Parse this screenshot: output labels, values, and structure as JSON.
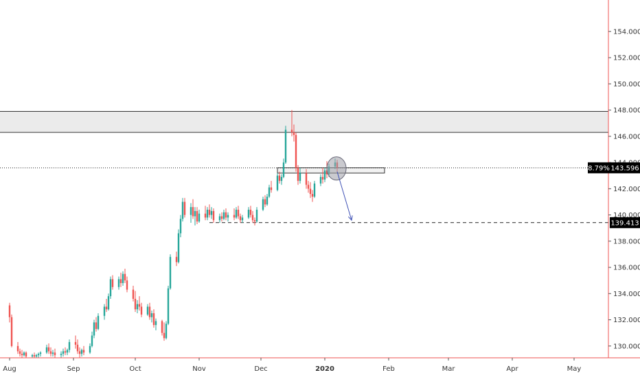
{
  "chart_data": {
    "type": "candlestick",
    "title": "",
    "xlabel": "",
    "ylabel": "",
    "ylim": [
      129.1,
      156.4
    ],
    "y_ticks": [
      "130.000",
      "132.000",
      "134.000",
      "136.000",
      "138.000",
      "140.000",
      "142.000",
      "144.000",
      "146.000",
      "148.000",
      "150.000",
      "152.000",
      "154.000"
    ],
    "x_ticks": [
      {
        "label": "Aug",
        "date": "2019-08-01"
      },
      {
        "label": "Sep",
        "date": "2019-09-01"
      },
      {
        "label": "Oct",
        "date": "2019-10-01"
      },
      {
        "label": "Nov",
        "date": "2019-11-01"
      },
      {
        "label": "Dec",
        "date": "2019-12-01"
      },
      {
        "label": "2020",
        "date": "2020-01-01",
        "bold": true
      },
      {
        "label": "Feb",
        "date": "2020-02-01"
      },
      {
        "label": "Mar",
        "date": "2020-03-01"
      },
      {
        "label": "Apr",
        "date": "2020-04-01"
      },
      {
        "label": "May",
        "date": "2020-05-01"
      }
    ],
    "colors": {
      "up": "#26a69a",
      "down": "#ef5350",
      "axis_line": "#ef5350",
      "zone_fill": "#ebebeb",
      "zone_border": "#333333",
      "arrow": "#3f51b5",
      "circle": "#9e9ea8",
      "label_bg": "#000000"
    },
    "grid": false,
    "ohlc_key": [
      "date",
      "open",
      "high",
      "low",
      "close"
    ],
    "ohlc": [
      [
        "2019-08-01",
        133.1,
        133.3,
        131.8,
        132.2
      ],
      [
        "2019-08-02",
        132.2,
        132.4,
        129.9,
        130.0
      ],
      [
        "2019-08-05",
        130.0,
        130.3,
        129.4,
        129.6
      ],
      [
        "2019-08-06",
        129.6,
        129.8,
        129.2,
        129.4
      ],
      [
        "2019-08-07",
        129.4,
        129.7,
        129.1,
        129.3
      ],
      [
        "2019-08-08",
        129.3,
        129.6,
        129.2,
        129.5
      ],
      [
        "2019-08-09",
        129.5,
        129.6,
        129.1,
        129.2
      ],
      [
        "2019-08-12",
        129.2,
        129.4,
        129.1,
        129.3
      ],
      [
        "2019-08-13",
        129.3,
        129.5,
        129.1,
        129.2
      ],
      [
        "2019-08-14",
        129.2,
        129.4,
        129.1,
        129.3
      ],
      [
        "2019-08-15",
        129.3,
        129.5,
        129.1,
        129.4
      ],
      [
        "2019-08-16",
        129.4,
        129.6,
        129.2,
        129.5
      ],
      [
        "2019-08-19",
        129.5,
        130.1,
        129.4,
        129.9
      ],
      [
        "2019-08-20",
        129.9,
        130.2,
        129.4,
        129.6
      ],
      [
        "2019-08-21",
        129.6,
        129.9,
        129.2,
        129.4
      ],
      [
        "2019-08-22",
        129.4,
        129.7,
        129.2,
        129.5
      ],
      [
        "2019-08-23",
        129.5,
        129.8,
        129.1,
        129.3
      ],
      [
        "2019-08-26",
        129.3,
        129.6,
        129.1,
        129.4
      ],
      [
        "2019-08-27",
        129.4,
        129.8,
        129.2,
        129.6
      ],
      [
        "2019-08-28",
        129.6,
        129.9,
        129.3,
        129.5
      ],
      [
        "2019-08-29",
        129.5,
        129.8,
        129.3,
        129.7
      ],
      [
        "2019-08-30",
        129.7,
        130.5,
        129.5,
        130.3
      ],
      [
        "2019-09-02",
        130.3,
        130.8,
        129.8,
        130.1
      ],
      [
        "2019-09-03",
        130.1,
        130.5,
        129.4,
        129.6
      ],
      [
        "2019-09-04",
        129.6,
        129.9,
        129.1,
        129.4
      ],
      [
        "2019-09-05",
        129.4,
        129.8,
        129.2,
        129.7
      ],
      [
        "2019-09-06",
        129.7,
        130.0,
        129.3,
        129.5
      ],
      [
        "2019-09-09",
        129.5,
        130.2,
        129.4,
        130.0
      ],
      [
        "2019-09-10",
        130.0,
        131.1,
        129.9,
        130.8
      ],
      [
        "2019-09-11",
        130.8,
        132.0,
        130.6,
        131.8
      ],
      [
        "2019-09-12",
        131.8,
        132.2,
        131.1,
        131.3
      ],
      [
        "2019-09-13",
        131.3,
        132.5,
        131.2,
        132.3
      ],
      [
        "2019-09-16",
        132.3,
        133.2,
        132.0,
        133.0
      ],
      [
        "2019-09-17",
        133.0,
        133.6,
        132.6,
        132.8
      ],
      [
        "2019-09-18",
        132.8,
        134.0,
        132.7,
        133.8
      ],
      [
        "2019-09-19",
        133.8,
        135.3,
        133.6,
        135.1
      ],
      [
        "2019-09-20",
        135.1,
        135.4,
        134.3,
        134.5
      ],
      [
        "2019-09-23",
        134.5,
        135.3,
        134.3,
        135.1
      ],
      [
        "2019-09-24",
        135.1,
        135.6,
        134.5,
        134.8
      ],
      [
        "2019-09-25",
        134.8,
        135.7,
        134.6,
        135.5
      ],
      [
        "2019-09-26",
        135.5,
        135.9,
        134.8,
        135.0
      ],
      [
        "2019-09-27",
        135.0,
        135.3,
        134.1,
        134.3
      ],
      [
        "2019-09-30",
        134.3,
        134.6,
        133.4,
        133.6
      ],
      [
        "2019-10-01",
        133.6,
        134.2,
        132.6,
        132.8
      ],
      [
        "2019-10-02",
        132.8,
        133.5,
        132.5,
        133.2
      ],
      [
        "2019-10-03",
        133.2,
        133.8,
        132.7,
        133.0
      ],
      [
        "2019-10-04",
        133.0,
        133.3,
        132.2,
        132.4
      ],
      [
        "2019-10-07",
        132.4,
        133.2,
        132.3,
        133.0
      ],
      [
        "2019-10-08",
        133.0,
        133.3,
        132.0,
        132.2
      ],
      [
        "2019-10-09",
        132.2,
        132.7,
        131.8,
        132.5
      ],
      [
        "2019-10-10",
        132.5,
        132.8,
        131.4,
        131.6
      ],
      [
        "2019-10-11",
        131.6,
        132.1,
        131.2,
        131.9
      ],
      [
        "2019-10-14",
        131.9,
        132.0,
        130.8,
        131.0
      ],
      [
        "2019-10-15",
        131.0,
        131.8,
        130.4,
        130.6
      ],
      [
        "2019-10-16",
        130.6,
        131.9,
        130.5,
        131.7
      ],
      [
        "2019-10-17",
        131.7,
        134.6,
        131.6,
        134.4
      ],
      [
        "2019-10-18",
        134.4,
        137.0,
        134.3,
        136.8
      ],
      [
        "2019-10-21",
        136.8,
        137.2,
        136.1,
        136.4
      ],
      [
        "2019-10-22",
        136.4,
        138.9,
        136.3,
        138.6
      ],
      [
        "2019-10-23",
        138.6,
        140.0,
        138.3,
        139.7
      ],
      [
        "2019-10-24",
        139.7,
        141.3,
        139.5,
        141.0
      ],
      [
        "2019-10-25",
        141.0,
        141.3,
        139.8,
        140.0
      ],
      [
        "2019-10-28",
        140.0,
        140.9,
        139.4,
        140.6
      ],
      [
        "2019-10-29",
        140.6,
        141.2,
        139.7,
        139.9
      ],
      [
        "2019-10-30",
        139.9,
        140.6,
        139.2,
        140.3
      ],
      [
        "2019-10-31",
        140.3,
        140.6,
        139.3,
        139.5
      ],
      [
        "2019-11-01",
        139.5,
        140.4,
        139.4,
        140.1
      ],
      [
        "2019-11-04",
        140.1,
        140.7,
        139.6,
        139.8
      ],
      [
        "2019-11-05",
        139.8,
        140.6,
        139.6,
        140.4
      ],
      [
        "2019-11-06",
        140.4,
        140.8,
        139.8,
        140.0
      ],
      [
        "2019-11-07",
        140.0,
        140.6,
        139.7,
        140.3
      ],
      [
        "2019-11-08",
        140.3,
        140.5,
        139.4,
        139.6
      ],
      [
        "2019-11-11",
        139.6,
        140.1,
        139.4,
        139.9
      ],
      [
        "2019-11-12",
        139.9,
        140.2,
        139.5,
        139.7
      ],
      [
        "2019-11-13",
        139.7,
        140.4,
        139.6,
        140.2
      ],
      [
        "2019-11-14",
        140.2,
        140.5,
        139.6,
        139.8
      ],
      [
        "2019-11-15",
        139.8,
        140.2,
        139.5,
        140.0
      ],
      [
        "2019-11-18",
        140.0,
        140.5,
        139.6,
        139.8
      ],
      [
        "2019-11-19",
        139.8,
        140.6,
        139.7,
        140.4
      ],
      [
        "2019-11-20",
        140.4,
        140.7,
        139.7,
        139.9
      ],
      [
        "2019-11-21",
        139.9,
        140.1,
        139.4,
        139.6
      ],
      [
        "2019-11-22",
        139.6,
        140.0,
        139.4,
        139.8
      ],
      [
        "2019-11-25",
        139.8,
        140.6,
        139.7,
        140.4
      ],
      [
        "2019-11-26",
        140.4,
        140.7,
        139.8,
        140.0
      ],
      [
        "2019-11-27",
        140.0,
        140.3,
        139.4,
        139.6
      ],
      [
        "2019-11-28",
        139.6,
        139.8,
        139.2,
        139.5
      ],
      [
        "2019-11-29",
        139.5,
        140.6,
        139.4,
        140.4
      ],
      [
        "2019-12-02",
        140.4,
        141.4,
        140.3,
        141.2
      ],
      [
        "2019-12-03",
        141.2,
        141.5,
        140.6,
        140.8
      ],
      [
        "2019-12-04",
        140.8,
        141.6,
        140.7,
        141.4
      ],
      [
        "2019-12-05",
        141.4,
        142.3,
        141.3,
        142.1
      ],
      [
        "2019-12-06",
        142.1,
        142.6,
        141.7,
        141.9
      ],
      [
        "2019-12-09",
        141.9,
        143.2,
        141.8,
        143.0
      ],
      [
        "2019-12-10",
        143.0,
        143.3,
        142.4,
        142.6
      ],
      [
        "2019-12-11",
        142.6,
        143.1,
        142.3,
        142.9
      ],
      [
        "2019-12-12",
        142.9,
        144.3,
        142.8,
        144.0
      ],
      [
        "2019-12-13",
        144.0,
        146.8,
        143.9,
        146.5
      ],
      [
        "2019-12-16",
        146.5,
        148.0,
        146.0,
        146.3
      ],
      [
        "2019-12-17",
        146.3,
        146.9,
        145.6,
        146.1
      ],
      [
        "2019-12-18",
        146.1,
        146.3,
        143.3,
        143.6
      ],
      [
        "2019-12-19",
        143.6,
        143.8,
        142.3,
        142.6
      ],
      [
        "2019-12-20",
        142.6,
        143.6,
        142.4,
        143.2
      ],
      [
        "2019-12-23",
        143.2,
        143.5,
        142.0,
        142.3
      ],
      [
        "2019-12-24",
        142.3,
        142.6,
        141.7,
        142.0
      ],
      [
        "2019-12-25",
        142.0,
        142.5,
        141.3,
        141.6
      ],
      [
        "2019-12-26",
        141.6,
        141.9,
        141.0,
        141.4
      ],
      [
        "2019-12-27",
        141.4,
        142.6,
        141.3,
        142.4
      ],
      [
        "2019-12-30",
        142.4,
        143.1,
        142.2,
        142.9
      ],
      [
        "2019-12-31",
        142.9,
        143.6,
        142.4,
        142.7
      ],
      [
        "2020-01-01",
        142.7,
        143.6,
        142.5,
        143.4
      ],
      [
        "2020-01-02",
        143.4,
        144.1,
        142.8,
        143.1
      ],
      [
        "2020-01-03",
        143.1,
        143.9,
        142.9,
        143.7
      ],
      [
        "2020-01-06",
        143.7,
        144.3,
        143.5,
        144.0
      ],
      [
        "2020-01-07",
        144.0,
        144.2,
        143.3,
        143.6
      ]
    ],
    "resistance_zone": [
      146.3,
      147.9
    ],
    "small_zone": {
      "y": [
        143.2,
        143.6
      ],
      "x": [
        "2019-12-09",
        "2020-01-30"
      ]
    },
    "current_price_line": 143.596,
    "support_line": {
      "y": 139.413,
      "from": "2019-11-06"
    },
    "circle": {
      "date": "2020-01-06",
      "price": 143.6
    },
    "arrow": {
      "from": {
        "date": "2020-01-07",
        "price": 143.3
      },
      "to": {
        "date": "2020-01-14",
        "price": 139.6
      }
    },
    "labels": {
      "percent": "8.79%",
      "price": "143.596",
      "support_price": "139.413"
    }
  }
}
